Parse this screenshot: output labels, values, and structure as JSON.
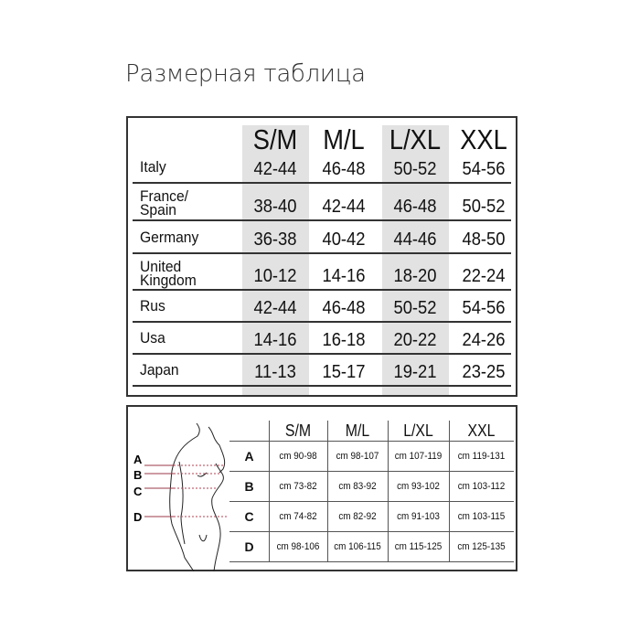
{
  "title": "Размерная таблица",
  "size_table": {
    "headers": [
      "S/M",
      "M/L",
      "L/XL",
      "XXL"
    ],
    "rows": [
      {
        "country": "Italy",
        "values": [
          "42-44",
          "46-48",
          "50-52",
          "54-56"
        ]
      },
      {
        "country": "France/ Spain",
        "values": [
          "38-40",
          "42-44",
          "46-48",
          "50-52"
        ]
      },
      {
        "country": "Germany",
        "values": [
          "36-38",
          "40-42",
          "44-46",
          "48-50"
        ]
      },
      {
        "country": "United Kingdom",
        "values": [
          "10-12",
          "14-16",
          "18-20",
          "22-24"
        ]
      },
      {
        "country": "Rus",
        "values": [
          "42-44",
          "46-48",
          "50-52",
          "54-56"
        ]
      },
      {
        "country": "Usa",
        "values": [
          "14-16",
          "16-18",
          "20-22",
          "24-26"
        ]
      },
      {
        "country": "Japan",
        "values": [
          "11-13",
          "15-17",
          "19-21",
          "23-25"
        ]
      }
    ],
    "shaded_column_color": "#e2e2e2"
  },
  "measure_table": {
    "headers": [
      "S/M",
      "M/L",
      "L/XL",
      "XXL"
    ],
    "rows": [
      {
        "label": "A",
        "values": [
          "cm 90-98",
          "cm 98-107",
          "cm 107-119",
          "cm 119-131"
        ]
      },
      {
        "label": "B",
        "values": [
          "cm 73-82",
          "cm 83-92",
          "cm 93-102",
          "cm 103-112"
        ]
      },
      {
        "label": "C",
        "values": [
          "cm 74-82",
          "cm 82-92",
          "cm 91-103",
          "cm 103-115"
        ]
      },
      {
        "label": "D",
        "values": [
          "cm 98-106",
          "cm 106-115",
          "cm 115-125",
          "cm 125-135"
        ]
      }
    ],
    "figure_labels": [
      "A",
      "B",
      "C",
      "D"
    ],
    "measure_line_color": "#9b3a4a"
  }
}
